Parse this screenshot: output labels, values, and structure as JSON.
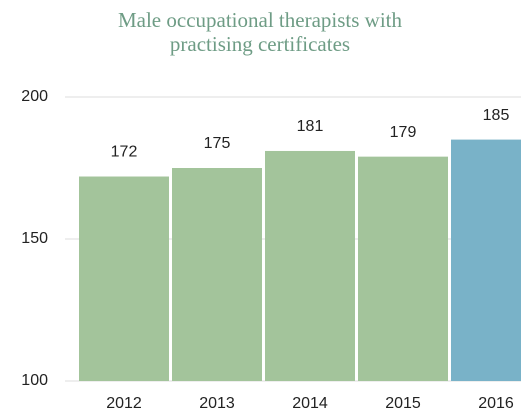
{
  "chart_data": {
    "type": "bar",
    "title": "Male occupational therapists with practising certificates",
    "categories": [
      "2012",
      "2013",
      "2014",
      "2015",
      "2016"
    ],
    "values": [
      172,
      175,
      181,
      179,
      185
    ],
    "colors": [
      "#a3c49b",
      "#a3c49b",
      "#a3c49b",
      "#a3c49b",
      "#79b2c8"
    ],
    "ylim": [
      100,
      200
    ],
    "yticks": [
      100,
      150,
      200
    ],
    "grid": true
  }
}
